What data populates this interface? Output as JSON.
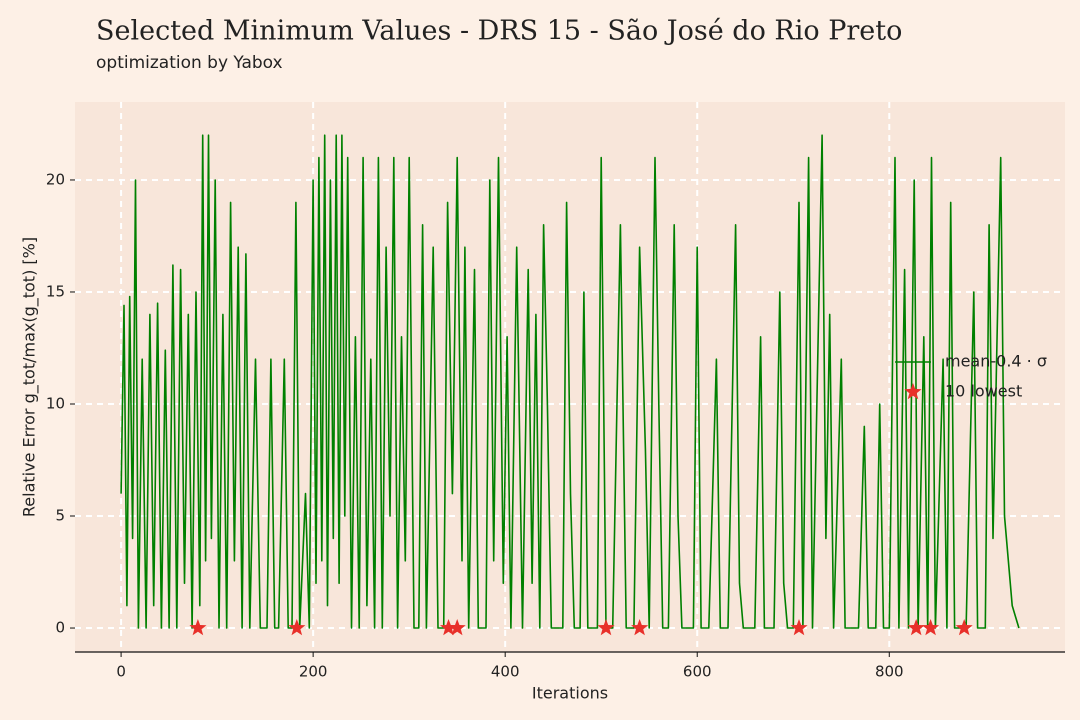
{
  "chart_data": {
    "type": "line",
    "title": "Selected Minimum Values - DRS 15 - São José do Rio Preto",
    "subtitle": "optimization by Yabox",
    "x_label": "Iterations",
    "y_label": "Relative Error g_tot/max(g_tot) [%]",
    "xlim": [
      -48,
      983
    ],
    "ylim": [
      -1.07,
      23.48
    ],
    "xticks": [
      0,
      200,
      400,
      600,
      800
    ],
    "yticks": [
      0,
      5,
      10,
      15,
      20
    ],
    "grid": true,
    "legend": "center right",
    "series": [
      {
        "name": "mean-0.4 · σ",
        "color": "#008000",
        "style": "line",
        "x": [
          0,
          3,
          6,
          9,
          12,
          15,
          18,
          22,
          26,
          30,
          34,
          38,
          42,
          46,
          50,
          54,
          58,
          62,
          66,
          70,
          74,
          78,
          82,
          85,
          88,
          91,
          94,
          98,
          102,
          106,
          110,
          114,
          118,
          122,
          126,
          130,
          134,
          140,
          145,
          152,
          156,
          160,
          164,
          170,
          174,
          178,
          182,
          186,
          192,
          196,
          200,
          203,
          206,
          209,
          212,
          215,
          218,
          221,
          224,
          227,
          230,
          233,
          236,
          240,
          244,
          248,
          252,
          256,
          260,
          264,
          268,
          272,
          276,
          280,
          284,
          288,
          292,
          296,
          300,
          305,
          310,
          314,
          318,
          325,
          330,
          336,
          340,
          345,
          350,
          355,
          358,
          362,
          368,
          372,
          380,
          384,
          388,
          393,
          398,
          402,
          406,
          412,
          418,
          424,
          428,
          432,
          436,
          440,
          444,
          448,
          460,
          464,
          468,
          472,
          478,
          482,
          486,
          496,
          500,
          505,
          512,
          520,
          526,
          534,
          540,
          546,
          550,
          556,
          560,
          564,
          570,
          576,
          580,
          584,
          596,
          600,
          604,
          612,
          620,
          624,
          632,
          640,
          644,
          648,
          660,
          666,
          670,
          680,
          686,
          690,
          694,
          700,
          706,
          710,
          716,
          720,
          730,
          734,
          738,
          742,
          750,
          754,
          768,
          774,
          778,
          786,
          790,
          794,
          800,
          806,
          810,
          816,
          820,
          826,
          830,
          836,
          840,
          844,
          848,
          856,
          860,
          864,
          868,
          880,
          888,
          892,
          900,
          904,
          908,
          916,
          920,
          928,
          935
        ],
        "values": [
          6,
          14.4,
          1,
          14.8,
          4,
          20,
          0,
          12,
          0,
          14,
          1,
          14.5,
          0,
          12.4,
          0,
          16.2,
          0,
          16,
          2,
          14,
          0,
          15,
          1,
          22,
          3,
          22,
          4,
          20,
          0,
          14,
          0,
          19,
          3,
          17,
          0,
          16.7,
          0,
          12,
          0,
          0,
          12,
          0,
          0,
          12,
          0,
          0,
          19,
          0,
          6,
          0,
          20,
          2,
          21,
          3,
          22,
          1,
          20,
          4,
          22,
          2,
          22,
          5,
          21,
          0,
          13,
          0,
          21,
          1,
          12,
          0,
          21,
          0,
          17,
          5,
          21,
          0,
          13,
          3,
          21,
          0,
          0,
          18,
          0,
          17,
          0,
          0,
          19,
          6,
          21,
          3,
          17,
          0,
          16,
          0,
          0,
          20,
          3,
          21,
          2,
          13,
          0,
          17,
          0,
          16,
          2,
          14,
          0,
          18,
          10,
          0,
          0,
          19,
          6,
          0,
          0,
          15,
          0,
          0,
          21,
          0,
          0,
          18,
          0,
          0,
          17,
          8,
          0,
          21,
          10,
          0,
          0,
          18,
          5,
          0,
          0,
          17,
          0,
          0,
          12,
          0,
          0,
          18,
          2,
          0,
          0,
          13,
          0,
          0,
          15,
          2,
          0,
          0,
          19,
          0,
          21,
          0,
          22,
          4,
          14,
          0,
          12,
          0,
          0,
          9,
          0,
          0,
          10,
          0,
          0,
          21,
          0,
          16,
          0,
          20,
          0,
          13,
          0,
          21,
          0,
          12,
          0,
          19,
          0,
          0,
          15,
          0,
          0,
          18,
          4,
          21,
          5,
          1,
          0
        ]
      },
      {
        "name": "10 lowest",
        "color": "#e8302a",
        "style": "star",
        "x": [
          80,
          183,
          341,
          350,
          505,
          540,
          706,
          828,
          843,
          878
        ],
        "values": [
          0,
          0,
          0,
          0,
          0,
          0,
          0,
          0,
          0,
          0
        ]
      }
    ]
  }
}
